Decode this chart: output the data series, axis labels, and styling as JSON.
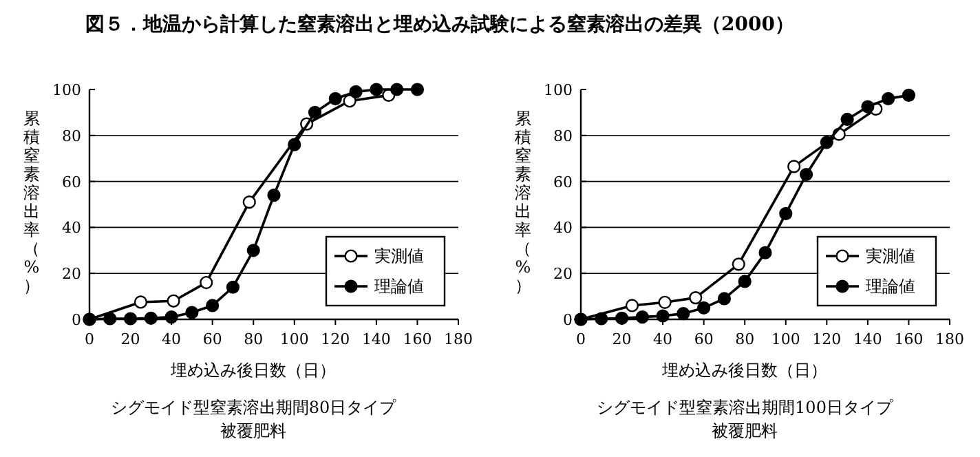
{
  "chart_data": [
    {
      "type": "line",
      "title": "図５．地温から計算した窒素溶出と埋め込み試験による窒素溶出の差異（2000）",
      "xlabel": "埋め込み後日数（日）",
      "ylabel": "累積窒素溶出率（%）",
      "annotations": [
        "シグモイド型窒素溶出期間80日タイプ",
        "被覆肥料"
      ],
      "xlim": [
        0,
        180
      ],
      "ylim": [
        0,
        100
      ],
      "xticks": [
        0,
        20,
        40,
        60,
        80,
        100,
        120,
        140,
        160,
        180
      ],
      "yticks": [
        0,
        20,
        40,
        60,
        80,
        100
      ],
      "grid": "y",
      "legend": "right",
      "marker": "circle",
      "series": [
        {
          "name": "実測値",
          "color": "#000000",
          "x": [
            0,
            25,
            41,
            57,
            78,
            106,
            127,
            146
          ],
          "values": [
            0,
            7.5,
            8,
            16,
            51,
            85,
            95,
            97.5
          ]
        },
        {
          "name": "理論値",
          "color": "#000000",
          "x": [
            0,
            10,
            20,
            30,
            40,
            50,
            60,
            70,
            80,
            90,
            100,
            110,
            120,
            130,
            140,
            150,
            160
          ],
          "values": [
            0,
            0.3,
            0.3,
            0.5,
            1,
            3,
            6,
            14,
            30,
            54,
            76,
            90,
            96,
            99,
            100,
            100,
            100
          ]
        }
      ]
    },
    {
      "type": "line",
      "xlabel": "埋め込み後日数（日）",
      "ylabel": "累積窒素溶出率（%）",
      "annotations": [
        "シグモイド型窒素溶出期間100日タイプ",
        "被覆肥料"
      ],
      "xlim": [
        0,
        180
      ],
      "ylim": [
        0,
        100
      ],
      "xticks": [
        0,
        20,
        40,
        60,
        80,
        100,
        120,
        140,
        160,
        180
      ],
      "yticks": [
        0,
        20,
        40,
        60,
        80,
        100
      ],
      "grid": "y",
      "legend": "right",
      "marker": "circle",
      "series": [
        {
          "name": "実測値",
          "color": "#000000",
          "x": [
            0,
            25,
            41,
            56,
            77,
            104,
            126,
            144
          ],
          "values": [
            0,
            6,
            7.4,
            9.4,
            24,
            66.5,
            80.5,
            91.5
          ]
        },
        {
          "name": "理論値",
          "color": "#000000",
          "x": [
            0,
            10,
            20,
            30,
            40,
            50,
            60,
            70,
            80,
            90,
            100,
            110,
            120,
            130,
            140,
            150,
            160
          ],
          "values": [
            0,
            0.3,
            0.5,
            1,
            1.5,
            2.5,
            5,
            9,
            16.5,
            29,
            46,
            63,
            77,
            87,
            92.5,
            96,
            97.5
          ]
        }
      ]
    }
  ]
}
